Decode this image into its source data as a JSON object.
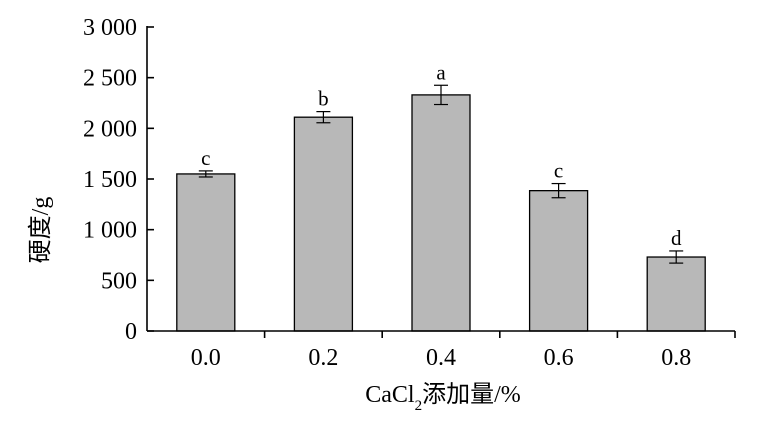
{
  "chart_data": {
    "type": "bar",
    "categories": [
      "0.0",
      "0.2",
      "0.4",
      "0.6",
      "0.8"
    ],
    "values": [
      1550,
      2110,
      2330,
      1385,
      730
    ],
    "errors": [
      30,
      55,
      95,
      70,
      60
    ],
    "significance": [
      "c",
      "b",
      "a",
      "c",
      "d"
    ],
    "xlabel_main": "CaCl",
    "xlabel_sub": "2",
    "xlabel_rest": "添加量/%",
    "ylabel": "硬度/g",
    "ylim": [
      0,
      3000
    ],
    "yticks": [
      0,
      500,
      1000,
      1500,
      2000,
      2500,
      3000
    ],
    "ytick_labels": [
      "0",
      "500",
      "1 000",
      "1 500",
      "2 000",
      "2 500",
      "3 000"
    ],
    "grid": false,
    "colors": {
      "bar_fill": "#b8b8b8",
      "bar_stroke": "#000000"
    }
  }
}
